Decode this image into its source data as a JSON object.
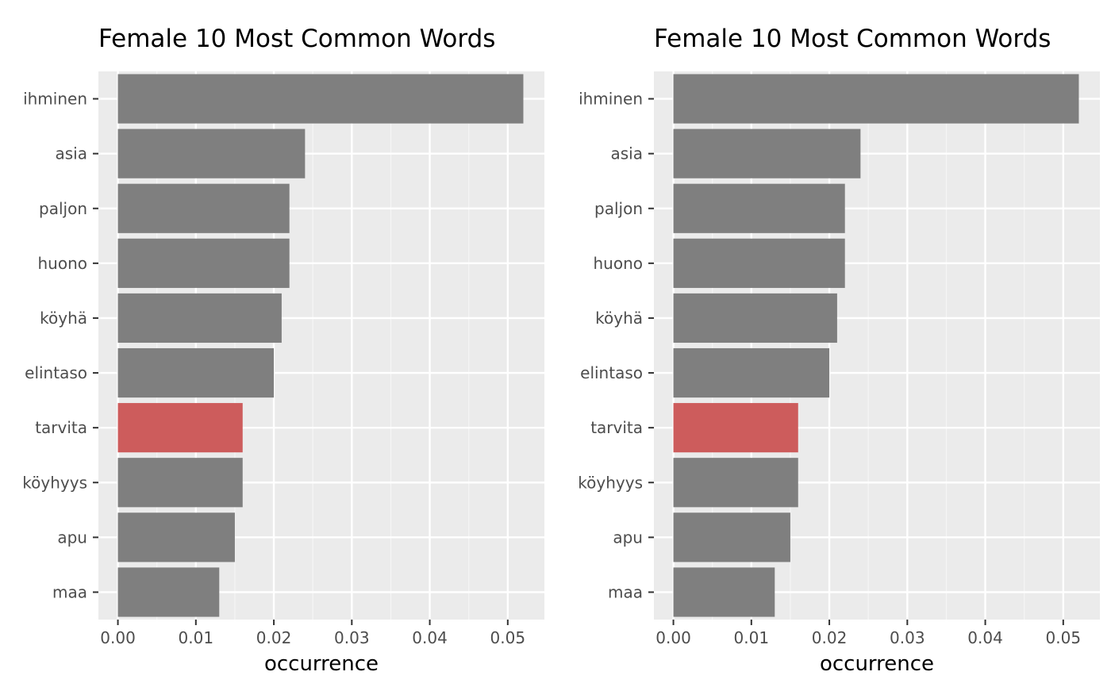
{
  "chart_data": [
    {
      "type": "bar",
      "orientation": "horizontal",
      "title": "Female 10 Most Common Words",
      "xlabel": "occurrence",
      "ylabel": "",
      "categories": [
        "ihminen",
        "asia",
        "paljon",
        "huono",
        "köyhä",
        "elintaso",
        "tarvita",
        "köyhyys",
        "apu",
        "maa"
      ],
      "values": [
        0.052,
        0.024,
        0.022,
        0.022,
        0.021,
        0.02,
        0.016,
        0.016,
        0.015,
        0.013
      ],
      "highlight": "tarvita",
      "xlim": [
        -0.0025,
        0.0547
      ],
      "xticks": [
        "0.00",
        "0.01",
        "0.02",
        "0.03",
        "0.04",
        "0.05"
      ],
      "grid": true,
      "legend": "none"
    },
    {
      "type": "bar",
      "orientation": "horizontal",
      "title": "Female 10 Most Common Words",
      "xlabel": "occurrence",
      "ylabel": "",
      "categories": [
        "ihminen",
        "asia",
        "paljon",
        "huono",
        "köyhä",
        "elintaso",
        "tarvita",
        "köyhyys",
        "apu",
        "maa"
      ],
      "values": [
        0.052,
        0.024,
        0.022,
        0.022,
        0.021,
        0.02,
        0.016,
        0.016,
        0.015,
        0.013
      ],
      "highlight": "tarvita",
      "xlim": [
        -0.0025,
        0.0547
      ],
      "xticks": [
        "0.00",
        "0.01",
        "0.02",
        "0.03",
        "0.04",
        "0.05"
      ],
      "grid": true,
      "legend": "none"
    }
  ],
  "colors": {
    "bar": "#7f7f7f",
    "highlight": "#cd5c5c",
    "panel": "#ebebeb",
    "grid_major": "#ffffff",
    "grid_minor": "#f5f5f5",
    "tick": "#333333"
  }
}
